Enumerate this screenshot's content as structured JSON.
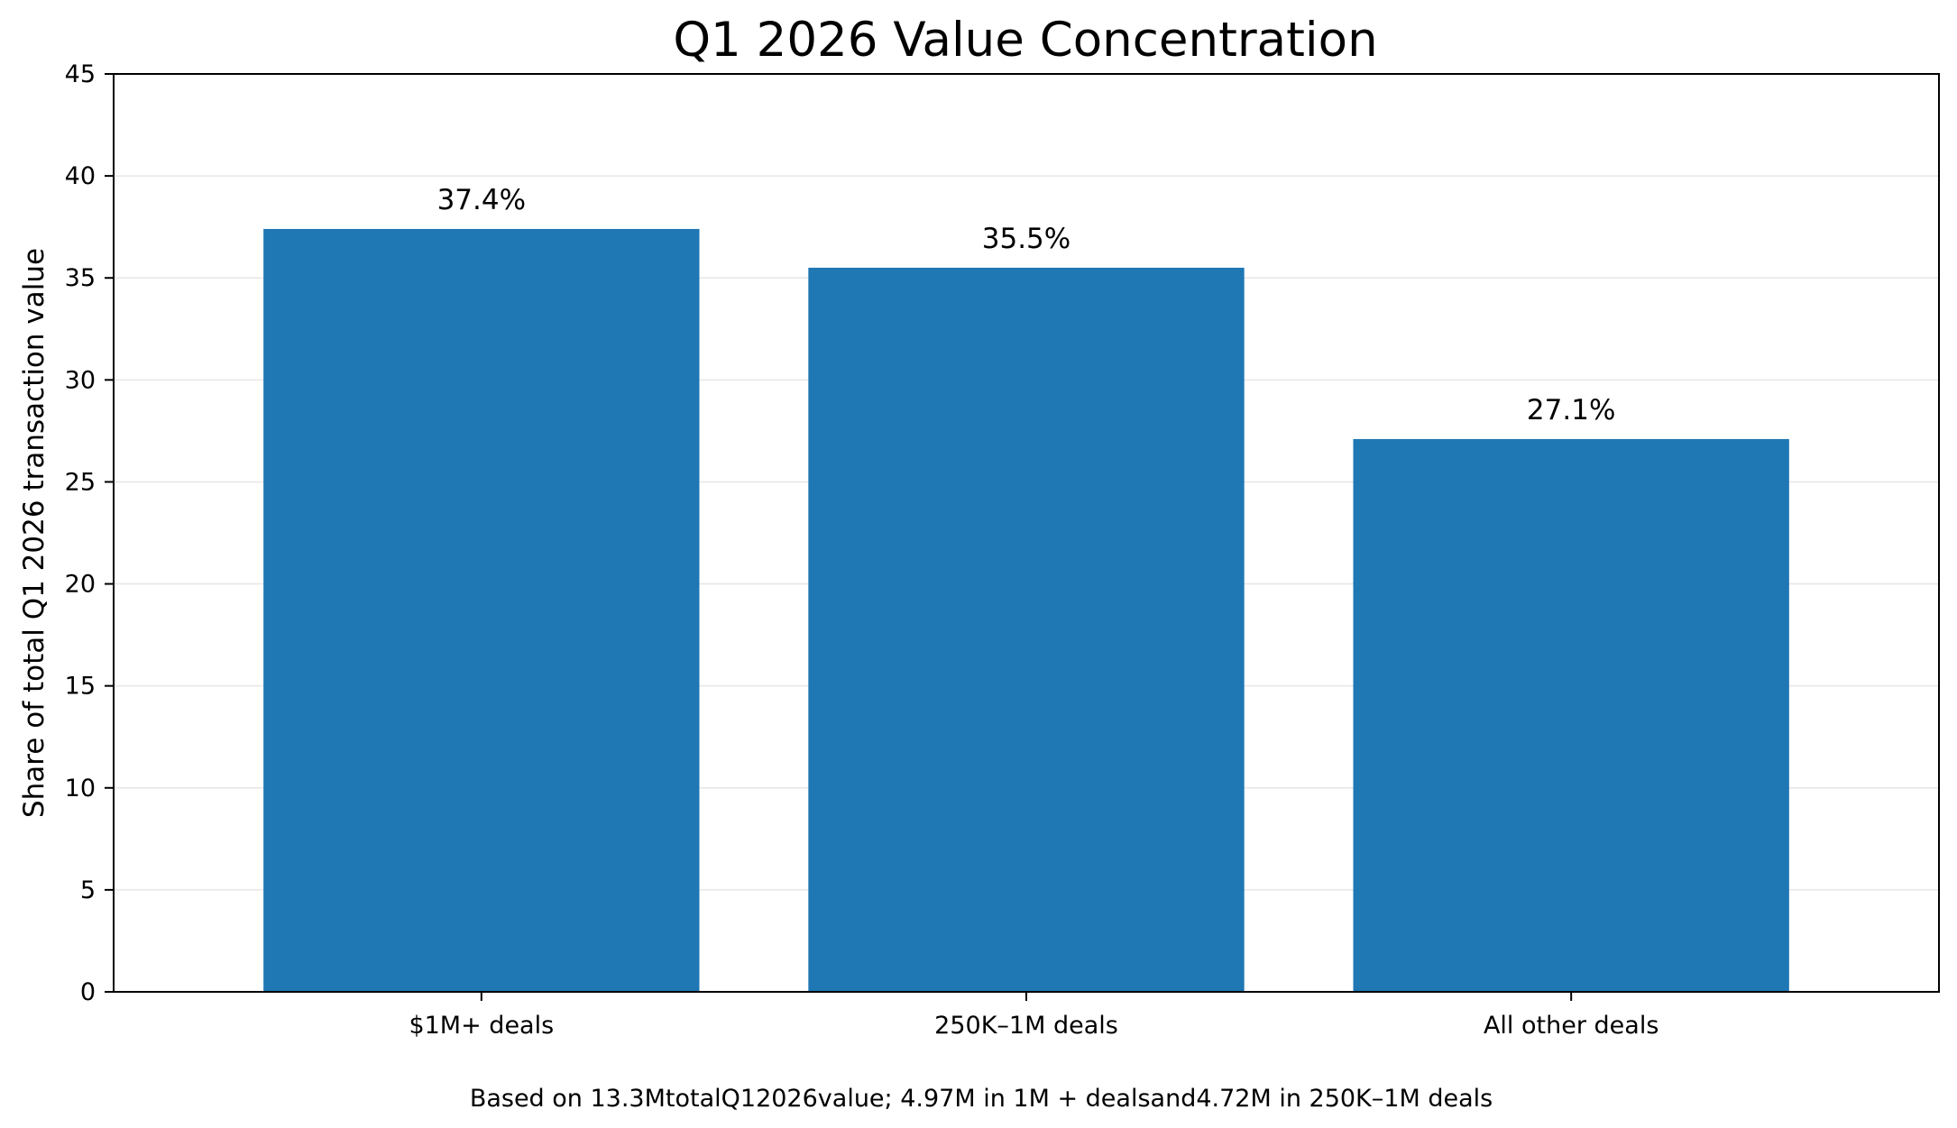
{
  "chart_data": {
    "type": "bar",
    "title": "Q1 2026 Value Concentration",
    "xlabel": "",
    "ylabel": "Share of total Q1 2026 transaction value",
    "categories": [
      "$1M+ deals",
      "250K–1M deals",
      "All other deals"
    ],
    "values": [
      37.4,
      35.5,
      27.1
    ],
    "data_labels": [
      "37.4%",
      "35.5%",
      "27.1%"
    ],
    "ylim": [
      0,
      45
    ],
    "yticks": [
      0,
      5,
      10,
      15,
      20,
      25,
      30,
      35,
      40,
      45
    ],
    "grid": "horizontal",
    "legend": "none",
    "bar_color": "#1f77b4",
    "footnote": "Based on 13.3MtotalQ12026value; 4.97M in 1M + dealsand4.72M in 250K–1M deals"
  }
}
